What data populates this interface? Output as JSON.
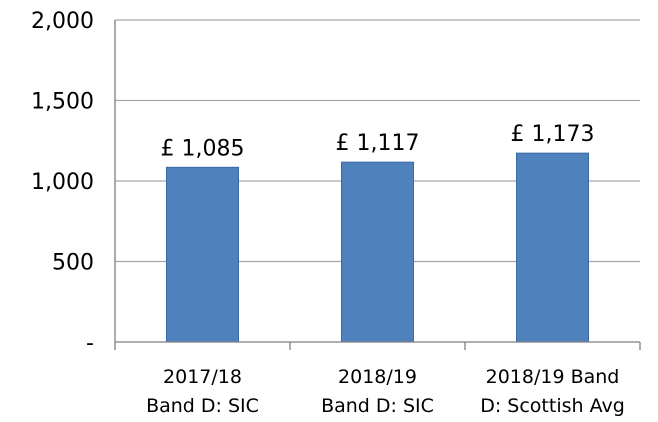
{
  "chart_data": {
    "type": "bar",
    "categories": [
      [
        "2017/18",
        "Band D: SIC"
      ],
      [
        "2018/19",
        "Band D: SIC"
      ],
      [
        "2018/19 Band",
        "D: Scottish Avg"
      ]
    ],
    "values": [
      1085,
      1117,
      1173
    ],
    "data_labels": [
      "£ 1,085",
      "£ 1,117",
      "£ 1,173"
    ],
    "title": "",
    "xlabel": "",
    "ylabel": "",
    "ylim": [
      0,
      2000
    ],
    "yticks": [
      0,
      500,
      1000,
      1500,
      2000
    ],
    "ytick_labels": [
      "-",
      "500",
      "1,000",
      "1,500",
      "2,000"
    ],
    "grid": true,
    "legend": false,
    "colors": {
      "bar_fill": "#4F81BD",
      "bar_stroke": "#3A6AA5",
      "gridline": "#A6A6A6",
      "axis": "#7F7F7F"
    }
  }
}
